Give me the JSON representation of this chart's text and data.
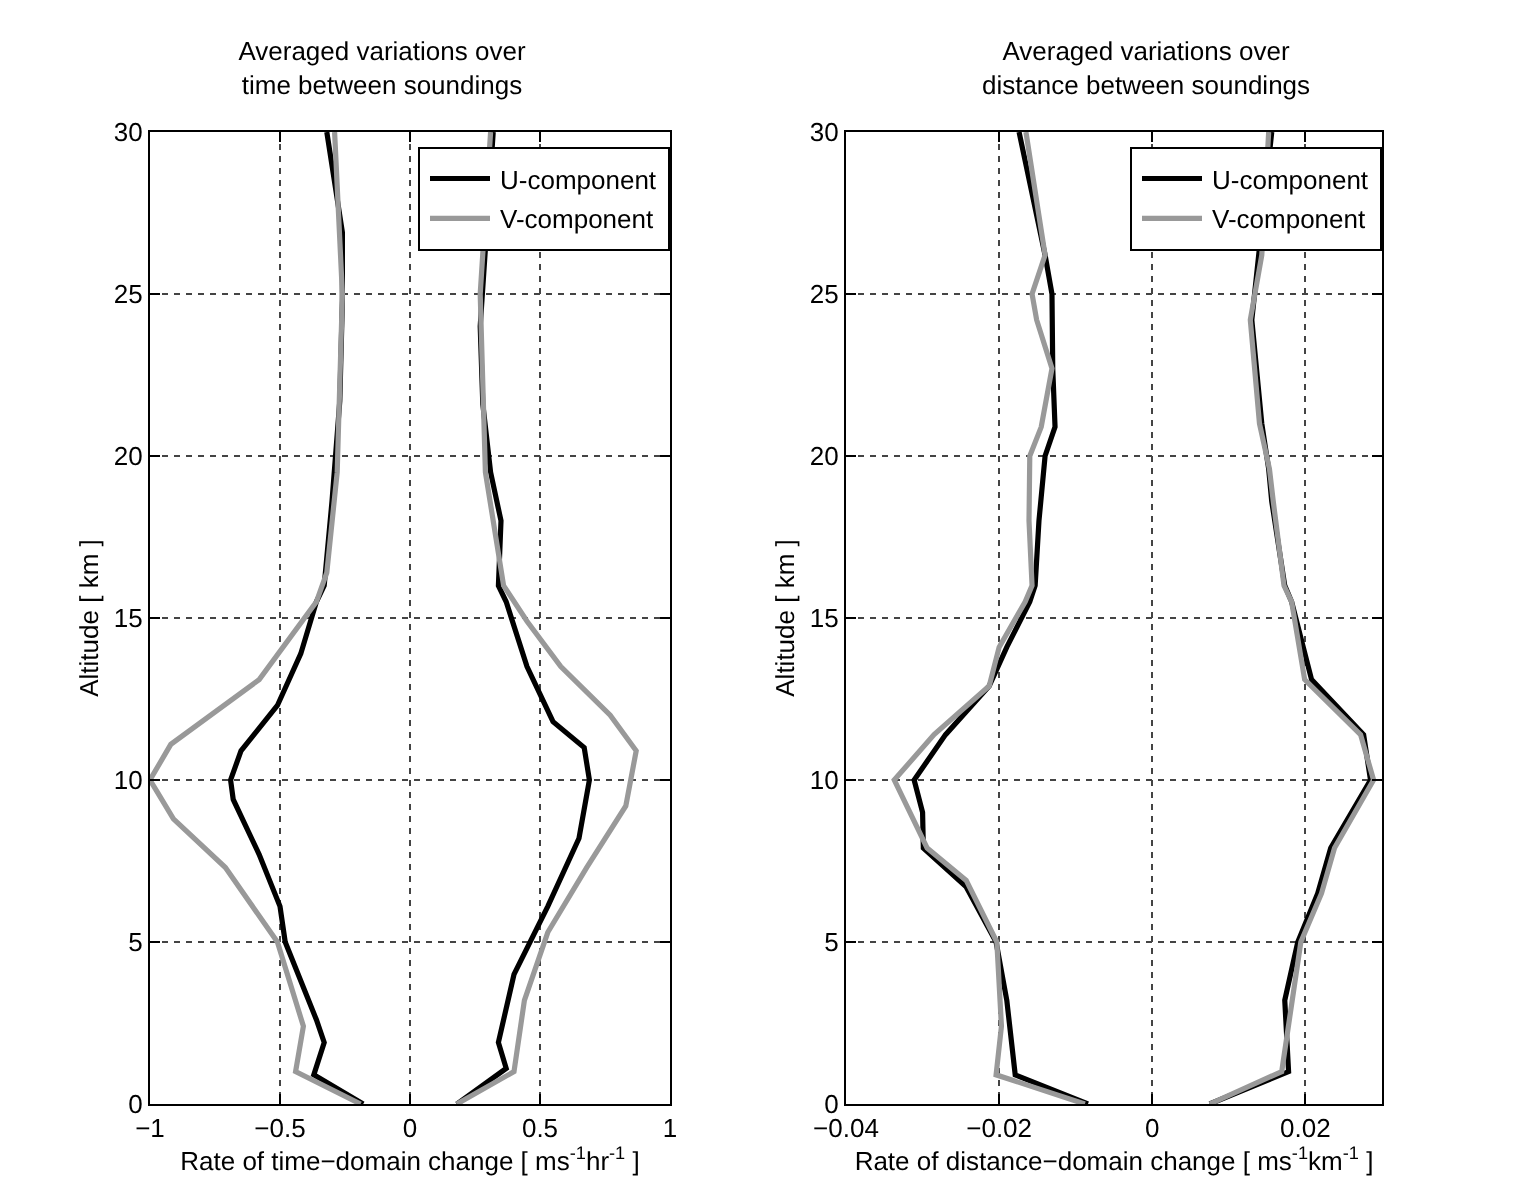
{
  "chart_data": [
    {
      "type": "line",
      "title": "Averaged variations over\ntime between soundings",
      "xlabel": "Rate of time−domain change [ ms$^{-1}$hr$^{-1}$ ]",
      "ylabel": "Altitude [ km ]",
      "xlim": [
        -1,
        1
      ],
      "xticks": [
        -1,
        -0.5,
        0,
        0.5,
        1
      ],
      "ylim": [
        0,
        30
      ],
      "yticks": [
        0,
        5,
        10,
        15,
        20,
        25,
        30
      ],
      "grid": true,
      "legend": "top right",
      "line_style": "solid",
      "marker": "none",
      "series": [
        {
          "name": "U-component",
          "color": "#000000",
          "x": [
            -0.18,
            -0.37,
            -0.33,
            -0.36,
            -0.48,
            -0.5,
            -0.58,
            -0.68,
            -0.69,
            -0.65,
            -0.51,
            -0.42,
            -0.36,
            -0.33,
            -0.3,
            -0.27,
            -0.26,
            -0.26,
            -0.32,
            null,
            0.32,
            0.27,
            0.28,
            0.31,
            0.35,
            0.34,
            0.37,
            0.45,
            0.55,
            0.67,
            0.69,
            0.65,
            0.53,
            0.4,
            0.34,
            0.37,
            0.18
          ],
          "values": [
            0,
            0.9,
            1.9,
            2.6,
            5,
            6.1,
            7.7,
            9.4,
            10,
            10.9,
            12.3,
            13.9,
            15.5,
            16,
            18.6,
            21.7,
            24.8,
            26.9,
            30,
            null,
            30,
            24,
            21.6,
            19.5,
            18,
            16,
            15.5,
            13.5,
            11.8,
            11,
            10,
            8.2,
            6.1,
            4,
            1.9,
            1.1,
            0
          ]
        },
        {
          "name": "V-component",
          "color": "#999999",
          "x": [
            -0.19,
            -0.44,
            -0.41,
            -0.51,
            -0.71,
            -0.91,
            -0.97,
            -1,
            -0.92,
            -0.58,
            -0.36,
            -0.32,
            -0.28,
            -0.26,
            -0.29,
            null,
            0.31,
            0.27,
            0.29,
            0.36,
            0.45,
            0.58,
            0.77,
            0.87,
            0.83,
            0.68,
            0.53,
            0.44,
            0.4,
            0.18
          ],
          "values": [
            0,
            1,
            2.4,
            5,
            7.3,
            8.8,
            9.6,
            10,
            11.1,
            13.1,
            15.5,
            16.4,
            19.5,
            25,
            30,
            null,
            30,
            25,
            19.5,
            16,
            14.9,
            13.5,
            12,
            10.9,
            9.2,
            7.3,
            5.3,
            3.2,
            1,
            0
          ]
        }
      ]
    },
    {
      "type": "line",
      "title": "Averaged variations over\ndistance between soundings",
      "xlabel": "Rate of distance−domain change [ ms$^{-1}$km$^{-1}$ ]",
      "ylabel": "Altitude [ km ]",
      "xlim": [
        -0.04,
        0.03
      ],
      "xticks": [
        -0.04,
        -0.02,
        0,
        0.02
      ],
      "ylim": [
        0,
        30
      ],
      "yticks": [
        0,
        5,
        10,
        15,
        20,
        25,
        30
      ],
      "grid": true,
      "legend": "top right",
      "line_style": "solid",
      "marker": "none",
      "series": [
        {
          "name": "U-component",
          "color": "#000000",
          "x": [
            -0.0084,
            -0.0179,
            -0.019,
            -0.0204,
            -0.0243,
            -0.0299,
            -0.03,
            -0.0311,
            -0.027,
            -0.0213,
            -0.019,
            -0.016,
            -0.0153,
            -0.0148,
            -0.014,
            -0.0127,
            -0.013,
            -0.0131,
            -0.014,
            -0.0174,
            null,
            0.0156,
            0.013,
            0.0143,
            0.0152,
            0.0156,
            0.0173,
            0.0182,
            0.0208,
            0.0276,
            0.0285,
            0.0233,
            0.0216,
            0.019,
            0.0173,
            0.0178,
            0.0075
          ],
          "values": [
            0,
            0.9,
            3.2,
            5,
            6.7,
            7.9,
            9,
            10,
            11.4,
            12.9,
            14.1,
            15.5,
            16,
            18,
            20,
            20.9,
            22.7,
            25,
            26.2,
            30,
            null,
            30,
            24.2,
            21,
            19.6,
            18.6,
            16,
            15.5,
            13.1,
            11.4,
            10,
            7.9,
            6.5,
            5,
            3.2,
            1,
            0
          ]
        },
        {
          "name": "V-component",
          "color": "#999999",
          "x": [
            -0.0088,
            -0.0204,
            -0.0197,
            -0.0203,
            -0.0243,
            -0.0294,
            -0.0337,
            -0.0285,
            -0.0213,
            -0.02,
            -0.0166,
            -0.0157,
            -0.0161,
            -0.016,
            -0.0145,
            -0.0131,
            -0.0151,
            -0.0157,
            -0.014,
            -0.0165,
            null,
            0.0152,
            0.0143,
            0.0128,
            0.014,
            0.0153,
            0.0158,
            0.0172,
            0.0182,
            0.0199,
            0.0272,
            0.0289,
            0.0238,
            0.0221,
            0.0194,
            0.0169,
            0.0075
          ],
          "values": [
            0,
            0.9,
            2.4,
            5,
            6.9,
            7.9,
            10,
            11.4,
            12.9,
            14.1,
            15.5,
            16,
            18,
            20,
            20.9,
            22.7,
            24.2,
            25,
            26.2,
            30,
            null,
            30,
            26.2,
            24.2,
            21,
            19.6,
            18.6,
            16,
            15.5,
            13.1,
            11.4,
            10,
            7.9,
            6.5,
            5,
            1,
            0
          ]
        }
      ]
    }
  ]
}
